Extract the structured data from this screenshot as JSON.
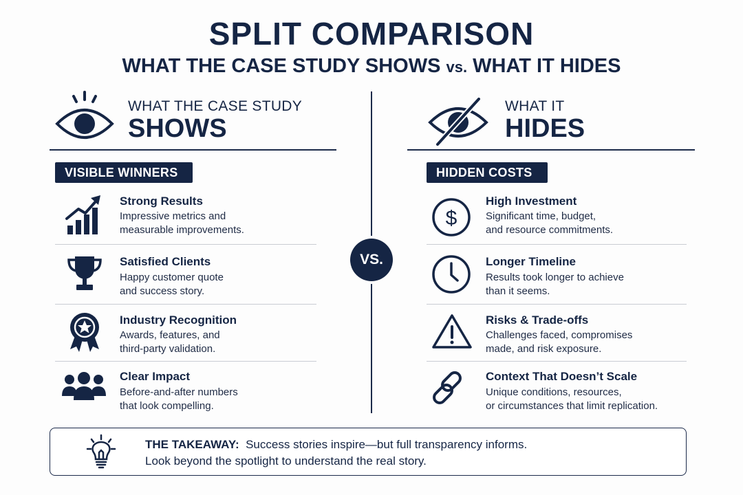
{
  "header": {
    "title": "SPLIT COMPARISON",
    "subtitle_left": "WHAT THE CASE STUDY SHOWS",
    "subtitle_vs": "vs.",
    "subtitle_right": "WHAT IT HIDES"
  },
  "vs_label": "VS.",
  "left": {
    "head_small": "WHAT THE CASE STUDY",
    "head_big": "SHOWS",
    "head_icon": "eye-icon",
    "badge": "VISIBLE WINNERS",
    "items": [
      {
        "icon": "chart-growth-icon",
        "title": "Strong Results",
        "desc1": "Impressive metrics and",
        "desc2": "measurable improvements."
      },
      {
        "icon": "trophy-icon",
        "title": "Satisfied Clients",
        "desc1": "Happy customer quote",
        "desc2": "and success story."
      },
      {
        "icon": "award-ribbon-icon",
        "title": "Industry Recognition",
        "desc1": "Awards, features, and",
        "desc2": "third-party validation."
      },
      {
        "icon": "people-group-icon",
        "title": "Clear Impact",
        "desc1": "Before-and-after numbers",
        "desc2": "that look compelling."
      }
    ]
  },
  "right": {
    "head_small": "WHAT IT",
    "head_big": "HIDES",
    "head_icon": "eye-slash-icon",
    "badge": "HIDDEN COSTS",
    "items": [
      {
        "icon": "dollar-circle-icon",
        "title": "High Investment",
        "desc1": "Significant time, budget,",
        "desc2": "and resource commitments."
      },
      {
        "icon": "clock-icon",
        "title": "Longer Timeline",
        "desc1": "Results took longer to achieve",
        "desc2": "than it seems."
      },
      {
        "icon": "warning-triangle-icon",
        "title": "Risks & Trade-offs",
        "desc1": "Challenges faced, compromises",
        "desc2": "made, and risk exposure."
      },
      {
        "icon": "chain-link-icon",
        "title": "Context That Doesn’t Scale",
        "desc1": "Unique conditions, resources,",
        "desc2": "or circumstances that limit replication."
      }
    ]
  },
  "takeaway": {
    "label": "THE TAKEAWAY:",
    "line1": "Success stories inspire—but full transparency informs.",
    "line2": "Look beyond the spotlight to understand the real story.",
    "icon": "lightbulb-icon"
  },
  "colors": {
    "navy": "#152544",
    "rule": "#c9ccd3",
    "background": "#fdfdfd"
  }
}
